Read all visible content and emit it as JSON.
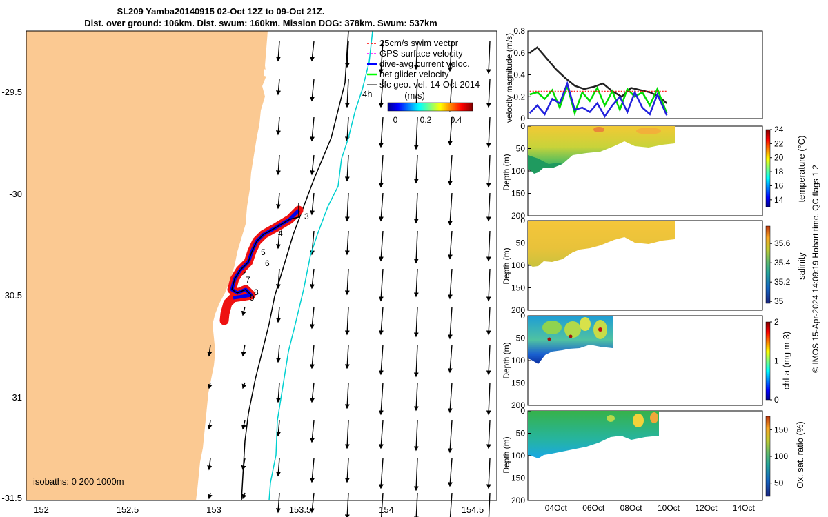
{
  "header": {
    "title_line1": "SL209 Yamba20140915 02-Oct 12Z to 09-Oct 21Z.",
    "title_line2": "Dist. over ground: 106km. Dist. swum: 160km. Mission DOG: 378km. Swum: 537km"
  },
  "map": {
    "legend": [
      {
        "label": "25cm/s swim vector",
        "color": "#ff0000",
        "style": "dash"
      },
      {
        "label": "GPS surface velocity",
        "color": "#ff00ff",
        "style": "dash"
      },
      {
        "label": "dive-avg current veloc.",
        "color": "#0000ff",
        "style": "solid"
      },
      {
        "label": "net glider velocity",
        "color": "#00ff00",
        "style": "solid"
      },
      {
        "label": "sfc geo. vel. 14-Oct-2014",
        "color": "#000000",
        "style": "arrow"
      }
    ],
    "scale_label": "4h",
    "colorbar_unit": "(m/s)",
    "colorbar_ticks": [
      "0",
      "0.2",
      "0.4"
    ],
    "x_ticks": [
      "152",
      "152.5",
      "153",
      "153.5",
      "154",
      "154.5"
    ],
    "y_ticks": [
      "-29.5",
      "-30",
      "-30.5",
      "-31",
      "-31.5"
    ],
    "isobaths_label": "isobaths: 0   200  1000m",
    "day_markers": [
      "3",
      "4",
      "5",
      "6",
      "7",
      "8",
      "9"
    ],
    "land_color": "#fbc992",
    "shelf_200m_color": "#000000",
    "shelf_1000m_color": "#00e5e5",
    "track_color": "#ff0000"
  },
  "right_panels": {
    "time_ticks": [
      "04Oct",
      "06Oct",
      "08Oct",
      "10Oct",
      "12Oct",
      "14Oct"
    ],
    "depth_ticks": [
      "0",
      "50",
      "100",
      "150",
      "200"
    ],
    "depth_label": "Depth (m)",
    "velocity": {
      "ylabel": "velocity magnitude (m/s)",
      "y_ticks": [
        "0",
        "0.2",
        "0.4",
        "0.6",
        "0.8"
      ]
    },
    "temperature": {
      "cbar_label": "temperature (°C)",
      "cbar_ticks": [
        "14",
        "16",
        "18",
        "20",
        "22",
        "24"
      ]
    },
    "salinity": {
      "cbar_label": "salinity",
      "cbar_ticks": [
        "35",
        "35.2",
        "35.4",
        "35.6"
      ]
    },
    "chla": {
      "cbar_label": "chl-a (mg m-3)",
      "cbar_ticks": [
        "0",
        "1",
        "2"
      ]
    },
    "oxygen": {
      "cbar_label": "Ox. sat. ratio (%)",
      "cbar_ticks": [
        "50",
        "100",
        "150"
      ]
    },
    "credit": "© IMOS 15-Apr-2024 14:09:19 Hobart time. QC flags 1  2"
  },
  "chart_data": [
    {
      "type": "line",
      "title": "",
      "xlabel": "",
      "ylabel": "velocity magnitude (m/s)",
      "ylim": [
        0,
        0.8
      ],
      "x_ticks": [
        "04Oct",
        "06Oct",
        "08Oct",
        "10Oct",
        "12Oct",
        "14Oct"
      ],
      "series": [
        {
          "name": "sfc geo. vel.",
          "color": "#222222",
          "x": [
            2.6,
            3.0,
            3.5,
            4.0,
            4.5,
            5.0,
            5.5,
            6.0,
            6.5,
            7.0,
            7.5,
            8.0,
            8.5,
            9.0,
            9.5,
            9.9
          ],
          "values": [
            0.6,
            0.65,
            0.55,
            0.45,
            0.37,
            0.3,
            0.27,
            0.29,
            0.32,
            0.25,
            0.2,
            0.28,
            0.26,
            0.24,
            0.2,
            0.14
          ]
        },
        {
          "name": "net glider velocity",
          "color": "#00dd00",
          "x": [
            2.6,
            3.0,
            3.4,
            3.8,
            4.2,
            4.6,
            5.0,
            5.4,
            5.8,
            6.2,
            6.6,
            7.0,
            7.4,
            7.8,
            8.2,
            8.6,
            9.0,
            9.4,
            9.9
          ],
          "values": [
            0.22,
            0.24,
            0.18,
            0.26,
            0.1,
            0.3,
            0.05,
            0.24,
            0.16,
            0.28,
            0.12,
            0.25,
            0.08,
            0.27,
            0.2,
            0.24,
            0.12,
            0.27,
            0.05
          ]
        },
        {
          "name": "dive-avg current veloc.",
          "color": "#2222dd",
          "x": [
            2.6,
            3.0,
            3.4,
            3.8,
            4.2,
            4.6,
            5.0,
            5.4,
            5.8,
            6.2,
            6.6,
            7.0,
            7.4,
            7.8,
            8.2,
            8.6,
            9.0,
            9.4,
            9.9
          ],
          "values": [
            0.05,
            0.12,
            0.04,
            0.18,
            0.14,
            0.32,
            0.08,
            0.1,
            0.06,
            0.14,
            0.02,
            0.12,
            0.2,
            0.06,
            0.24,
            0.1,
            0.04,
            0.22,
            0.03
          ]
        },
        {
          "name": "25cm/s swim vector",
          "color": "#ff0000",
          "x": [
            2.6,
            9.9
          ],
          "values": [
            0.25,
            0.25
          ]
        }
      ]
    },
    {
      "type": "heatmap",
      "ylabel": "Depth (m)",
      "colorbar": "temperature (°C)",
      "clim": [
        13,
        24
      ],
      "ylim": [
        200,
        0
      ]
    },
    {
      "type": "heatmap",
      "ylabel": "Depth (m)",
      "colorbar": "salinity",
      "clim": [
        35,
        35.75
      ],
      "ylim": [
        200,
        0
      ]
    },
    {
      "type": "heatmap",
      "ylabel": "Depth (m)",
      "colorbar": "chl-a (mg m-3)",
      "clim": [
        0,
        2
      ],
      "ylim": [
        200,
        0
      ]
    },
    {
      "type": "heatmap",
      "ylabel": "Depth (m)",
      "colorbar": "Ox. sat. ratio (%)",
      "clim": [
        25,
        175
      ],
      "ylim": [
        200,
        0
      ]
    }
  ]
}
